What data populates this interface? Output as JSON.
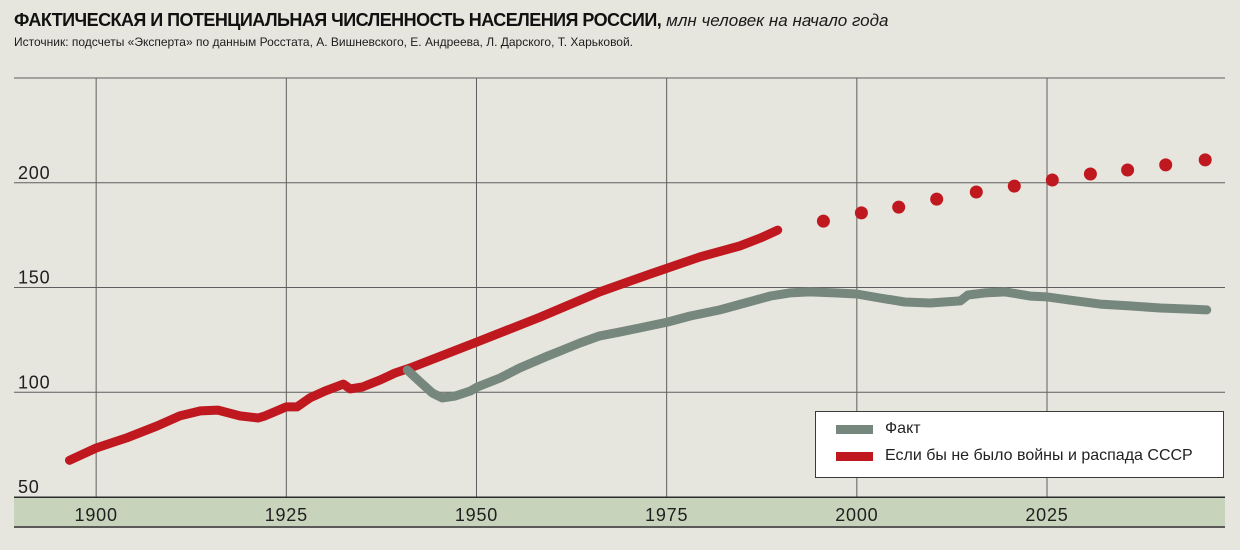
{
  "colors": {
    "background": "#e6e5de",
    "axis_band": "#c8d3bb",
    "gridlines": "#5f5f5f",
    "axis": "#2b2b2b"
  },
  "chart_data": {
    "type": "line",
    "title": "ФАКТИЧЕСКАЯ И ПОТЕНЦИАЛЬНАЯ ЧИСЛЕННОСТЬ НАСЕЛЕНИЯ РОССИИ,",
    "unit": "млн человек на начало года",
    "source": "Источник: подсчеты «Эксперта» по данным Росстата, А. Вишневского, Е. Андреева, Л. Дарского, Т. Харьковой.",
    "xlim": [
      1889.2,
      2048.4
    ],
    "ylim": [
      50,
      250
    ],
    "x_ticks": [
      1900,
      1925,
      1950,
      1975,
      2000,
      2025
    ],
    "y_ticks": [
      50,
      100,
      150,
      200
    ],
    "grid": true,
    "legend": "bottom-right",
    "series": [
      {
        "name": "Факт",
        "color": "#76877d",
        "points": [
          [
            1940.9,
            110.6
          ],
          [
            1942.6,
            104.9
          ],
          [
            1944.2,
            99.6
          ],
          [
            1945.5,
            97.3
          ],
          [
            1947.2,
            98.2
          ],
          [
            1949.2,
            100.6
          ],
          [
            1950.1,
            102.5
          ],
          [
            1953.1,
            106.8
          ],
          [
            1955.7,
            111.6
          ],
          [
            1959.0,
            116.8
          ],
          [
            1961.0,
            119.7
          ],
          [
            1963.6,
            123.5
          ],
          [
            1966.2,
            126.9
          ],
          [
            1968.9,
            128.8
          ],
          [
            1971.5,
            130.7
          ],
          [
            1975.1,
            133.5
          ],
          [
            1978.1,
            136.4
          ],
          [
            1982.0,
            139.3
          ],
          [
            1985.3,
            142.6
          ],
          [
            1988.6,
            145.9
          ],
          [
            1991.2,
            147.4
          ],
          [
            1993.8,
            147.9
          ],
          [
            1997.1,
            147.4
          ],
          [
            2000.0,
            146.9
          ],
          [
            2003.0,
            145.0
          ],
          [
            2006.3,
            143.1
          ],
          [
            2009.6,
            142.6
          ],
          [
            2013.6,
            143.6
          ],
          [
            2014.6,
            146.4
          ],
          [
            2016.9,
            147.4
          ],
          [
            2019.5,
            147.9
          ],
          [
            2022.8,
            145.9
          ],
          [
            2025.0,
            145.5
          ],
          [
            2028.0,
            144.0
          ],
          [
            2032.0,
            142.1
          ],
          [
            2035.9,
            141.2
          ],
          [
            2039.9,
            140.2
          ],
          [
            2043.8,
            139.7
          ],
          [
            2046.0,
            139.3
          ]
        ]
      },
      {
        "name": "Если бы не было войны и распада СССР",
        "color": "#c0181f",
        "points": [
          [
            1896.5,
            67.5
          ],
          [
            1900.0,
            73.4
          ],
          [
            1904.0,
            78.2
          ],
          [
            1908.0,
            83.9
          ],
          [
            1911.0,
            88.7
          ],
          [
            1913.7,
            91.1
          ],
          [
            1916.0,
            91.5
          ],
          [
            1918.9,
            88.7
          ],
          [
            1921.3,
            87.7
          ],
          [
            1922.2,
            88.7
          ],
          [
            1925.0,
            93.0
          ],
          [
            1926.4,
            93.0
          ],
          [
            1928.1,
            97.3
          ],
          [
            1930.1,
            100.6
          ],
          [
            1932.5,
            103.9
          ],
          [
            1933.4,
            101.6
          ],
          [
            1935.0,
            102.5
          ],
          [
            1937.3,
            105.8
          ],
          [
            1939.3,
            109.2
          ],
          [
            1941.3,
            111.6
          ],
          [
            1950.0,
            123.9
          ],
          [
            1958.4,
            135.9
          ],
          [
            1966.2,
            147.9
          ],
          [
            1972.8,
            156.4
          ],
          [
            1979.4,
            164.6
          ],
          [
            1984.6,
            169.8
          ],
          [
            1987.3,
            173.6
          ],
          [
            1989.6,
            177.4
          ]
        ],
        "projection": [
          [
            1995.6,
            181.7
          ],
          [
            2000.6,
            185.6
          ],
          [
            2005.5,
            188.4
          ],
          [
            2010.5,
            192.2
          ],
          [
            2015.7,
            195.6
          ],
          [
            2020.7,
            198.4
          ],
          [
            2025.7,
            201.3
          ],
          [
            2030.7,
            204.2
          ],
          [
            2035.6,
            206.1
          ],
          [
            2040.6,
            208.5
          ],
          [
            2045.8,
            210.9
          ]
        ]
      }
    ]
  }
}
